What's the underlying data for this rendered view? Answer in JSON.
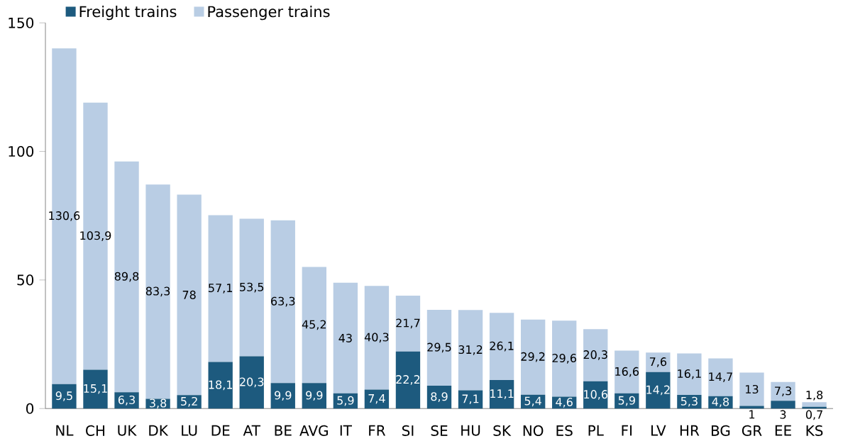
{
  "chart_data": {
    "type": "bar",
    "stacked": true,
    "categories": [
      "NL",
      "CH",
      "UK",
      "DK",
      "LU",
      "DE",
      "AT",
      "BE",
      "AVG",
      "IT",
      "FR",
      "SI",
      "SE",
      "HU",
      "SK",
      "NO",
      "ES",
      "PL",
      "FI",
      "LV",
      "HR",
      "BG",
      "GR",
      "EE",
      "KS"
    ],
    "series": [
      {
        "name": "Freight trains",
        "color": "#1d5a7e",
        "values": [
          9.5,
          15.1,
          6.3,
          3.8,
          5.2,
          18.1,
          20.3,
          9.9,
          9.9,
          5.9,
          7.4,
          22.2,
          8.9,
          7.1,
          11.1,
          5.4,
          4.6,
          10.6,
          5.9,
          14.2,
          5.3,
          4.8,
          1,
          3,
          0.7
        ],
        "value_labels": [
          "9,5",
          "15,1",
          "6,3",
          "3,8",
          "5,2",
          "18,1",
          "20,3",
          "9,9",
          "9,9",
          "5,9",
          "7,4",
          "22,2",
          "8,9",
          "7,1",
          "11,1",
          "5,4",
          "4,6",
          "10,6",
          "5,9",
          "14,2",
          "5,3",
          "4,8",
          "1",
          "3",
          "0,7"
        ]
      },
      {
        "name": "Passenger trains",
        "color": "#b9cde4",
        "values": [
          130.6,
          103.9,
          89.8,
          83.3,
          78,
          57.1,
          53.5,
          63.3,
          45.2,
          43,
          40.3,
          21.7,
          29.5,
          31.2,
          26.1,
          29.2,
          29.6,
          20.3,
          16.6,
          7.6,
          16.1,
          14.7,
          13,
          7.3,
          1.8
        ],
        "value_labels": [
          "130,6",
          "103,9",
          "89,8",
          "83,3",
          "78",
          "57,1",
          "53,5",
          "63,3",
          "45,2",
          "43",
          "40,3",
          "21,7",
          "29,5",
          "31,2",
          "26,1",
          "29,2",
          "29,6",
          "20,3",
          "16,6",
          "7,6",
          "16,1",
          "14,7",
          "13",
          "7,3",
          "1,8"
        ]
      }
    ],
    "ylim": [
      0,
      150
    ],
    "yticks": [
      0,
      50,
      100,
      150
    ],
    "grid": false,
    "legend": "top left"
  }
}
